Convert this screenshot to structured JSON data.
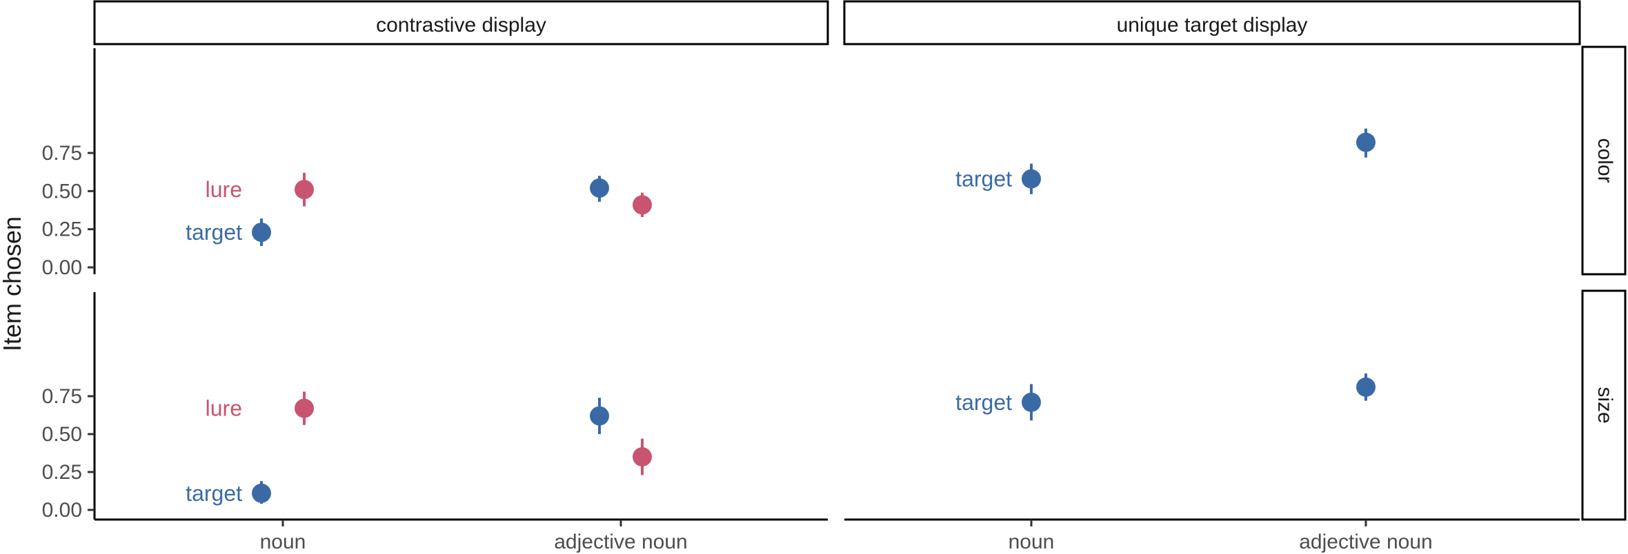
{
  "chart_data": {
    "type": "scatter",
    "geom": "pointrange",
    "ylabel": "Item chosen",
    "xlabel": "",
    "ylim": [
      0,
      0.95
    ],
    "yticks": [
      "0.00",
      "0.25",
      "0.50",
      "0.75"
    ],
    "ytick_values": [
      0,
      0.25,
      0.5,
      0.75
    ],
    "categories": [
      "noun",
      "adjective noun"
    ],
    "columns": [
      "contrastive display",
      "unique target display"
    ],
    "rows": [
      "color",
      "size"
    ],
    "colors": {
      "target": "#3a6aa6",
      "lure": "#c95470"
    },
    "series_labels": {
      "target": "target",
      "lure": "lure"
    },
    "panels": [
      {
        "column": "contrastive display",
        "row": "color",
        "series": [
          {
            "item": "target",
            "points": [
              {
                "category": "noun",
                "y": 0.23,
                "ymin": 0.14,
                "ymax": 0.32
              },
              {
                "category": "adjective noun",
                "y": 0.52,
                "ymin": 0.43,
                "ymax": 0.6
              }
            ]
          },
          {
            "item": "lure",
            "points": [
              {
                "category": "noun",
                "y": 0.51,
                "ymin": 0.4,
                "ymax": 0.62
              },
              {
                "category": "adjective noun",
                "y": 0.41,
                "ymin": 0.33,
                "ymax": 0.49
              }
            ]
          }
        ],
        "labels": [
          {
            "item": "target",
            "category": "noun",
            "text": "target"
          },
          {
            "item": "lure",
            "category": "noun",
            "text": "lure"
          }
        ]
      },
      {
        "column": "unique target display",
        "row": "color",
        "series": [
          {
            "item": "target",
            "points": [
              {
                "category": "noun",
                "y": 0.58,
                "ymin": 0.48,
                "ymax": 0.68
              },
              {
                "category": "adjective noun",
                "y": 0.82,
                "ymin": 0.72,
                "ymax": 0.91
              }
            ]
          }
        ],
        "labels": [
          {
            "item": "target",
            "category": "noun",
            "text": "target"
          }
        ]
      },
      {
        "column": "contrastive display",
        "row": "size",
        "series": [
          {
            "item": "target",
            "points": [
              {
                "category": "noun",
                "y": 0.11,
                "ymin": 0.04,
                "ymax": 0.19
              },
              {
                "category": "adjective noun",
                "y": 0.62,
                "ymin": 0.5,
                "ymax": 0.74
              }
            ]
          },
          {
            "item": "lure",
            "points": [
              {
                "category": "noun",
                "y": 0.67,
                "ymin": 0.56,
                "ymax": 0.78
              },
              {
                "category": "adjective noun",
                "y": 0.35,
                "ymin": 0.23,
                "ymax": 0.47
              }
            ]
          }
        ],
        "labels": [
          {
            "item": "target",
            "category": "noun",
            "text": "target"
          },
          {
            "item": "lure",
            "category": "noun",
            "text": "lure"
          }
        ]
      },
      {
        "column": "unique target display",
        "row": "size",
        "series": [
          {
            "item": "target",
            "points": [
              {
                "category": "noun",
                "y": 0.71,
                "ymin": 0.59,
                "ymax": 0.83
              },
              {
                "category": "adjective noun",
                "y": 0.81,
                "ymin": 0.72,
                "ymax": 0.9
              }
            ]
          }
        ],
        "labels": [
          {
            "item": "target",
            "category": "noun",
            "text": "target"
          }
        ]
      }
    ]
  }
}
